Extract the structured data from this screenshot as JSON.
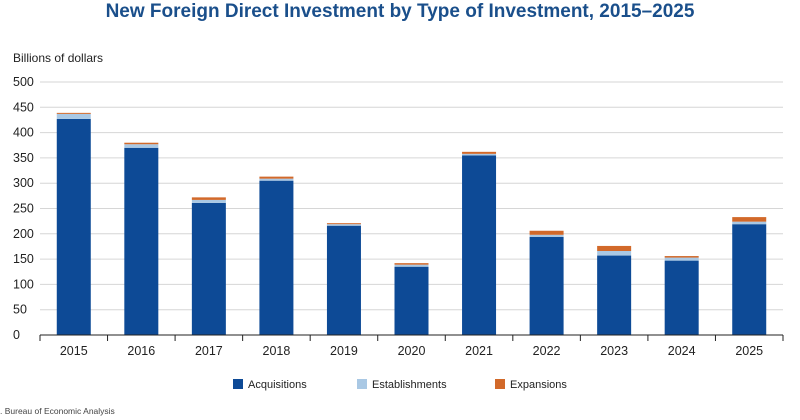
{
  "chart_data": {
    "type": "bar",
    "stacked": true,
    "title": "New Foreign Direct Investment by Type of Investment, 2015–2025",
    "ylabel": "Billions of dollars",
    "xlabel": "",
    "ylim": [
      0,
      500
    ],
    "yticks": [
      "0",
      "50",
      "100",
      "150",
      "200",
      "250",
      "300",
      "350",
      "400",
      "450",
      "500"
    ],
    "categories": [
      "2015",
      "2016",
      "2017",
      "2018",
      "2019",
      "2020",
      "2021",
      "2022",
      "2023",
      "2024",
      "2025"
    ],
    "series": [
      {
        "name": "Acquisitions",
        "color": "#0d4a96",
        "values": [
          427,
          370,
          261,
          305,
          216,
          135,
          355,
          194,
          157,
          147,
          219
        ]
      },
      {
        "name": "Establishments",
        "color": "#a9c8e4",
        "values": [
          10,
          7,
          6,
          4,
          3,
          4,
          3,
          4,
          9,
          6,
          5
        ]
      },
      {
        "name": "Expansions",
        "color": "#d2692a",
        "values": [
          2,
          3,
          5,
          4,
          2,
          3,
          4,
          8,
          10,
          3,
          9
        ]
      }
    ],
    "grid": true,
    "legend_position": "bottom"
  },
  "source": ". Bureau of Economic Analysis"
}
